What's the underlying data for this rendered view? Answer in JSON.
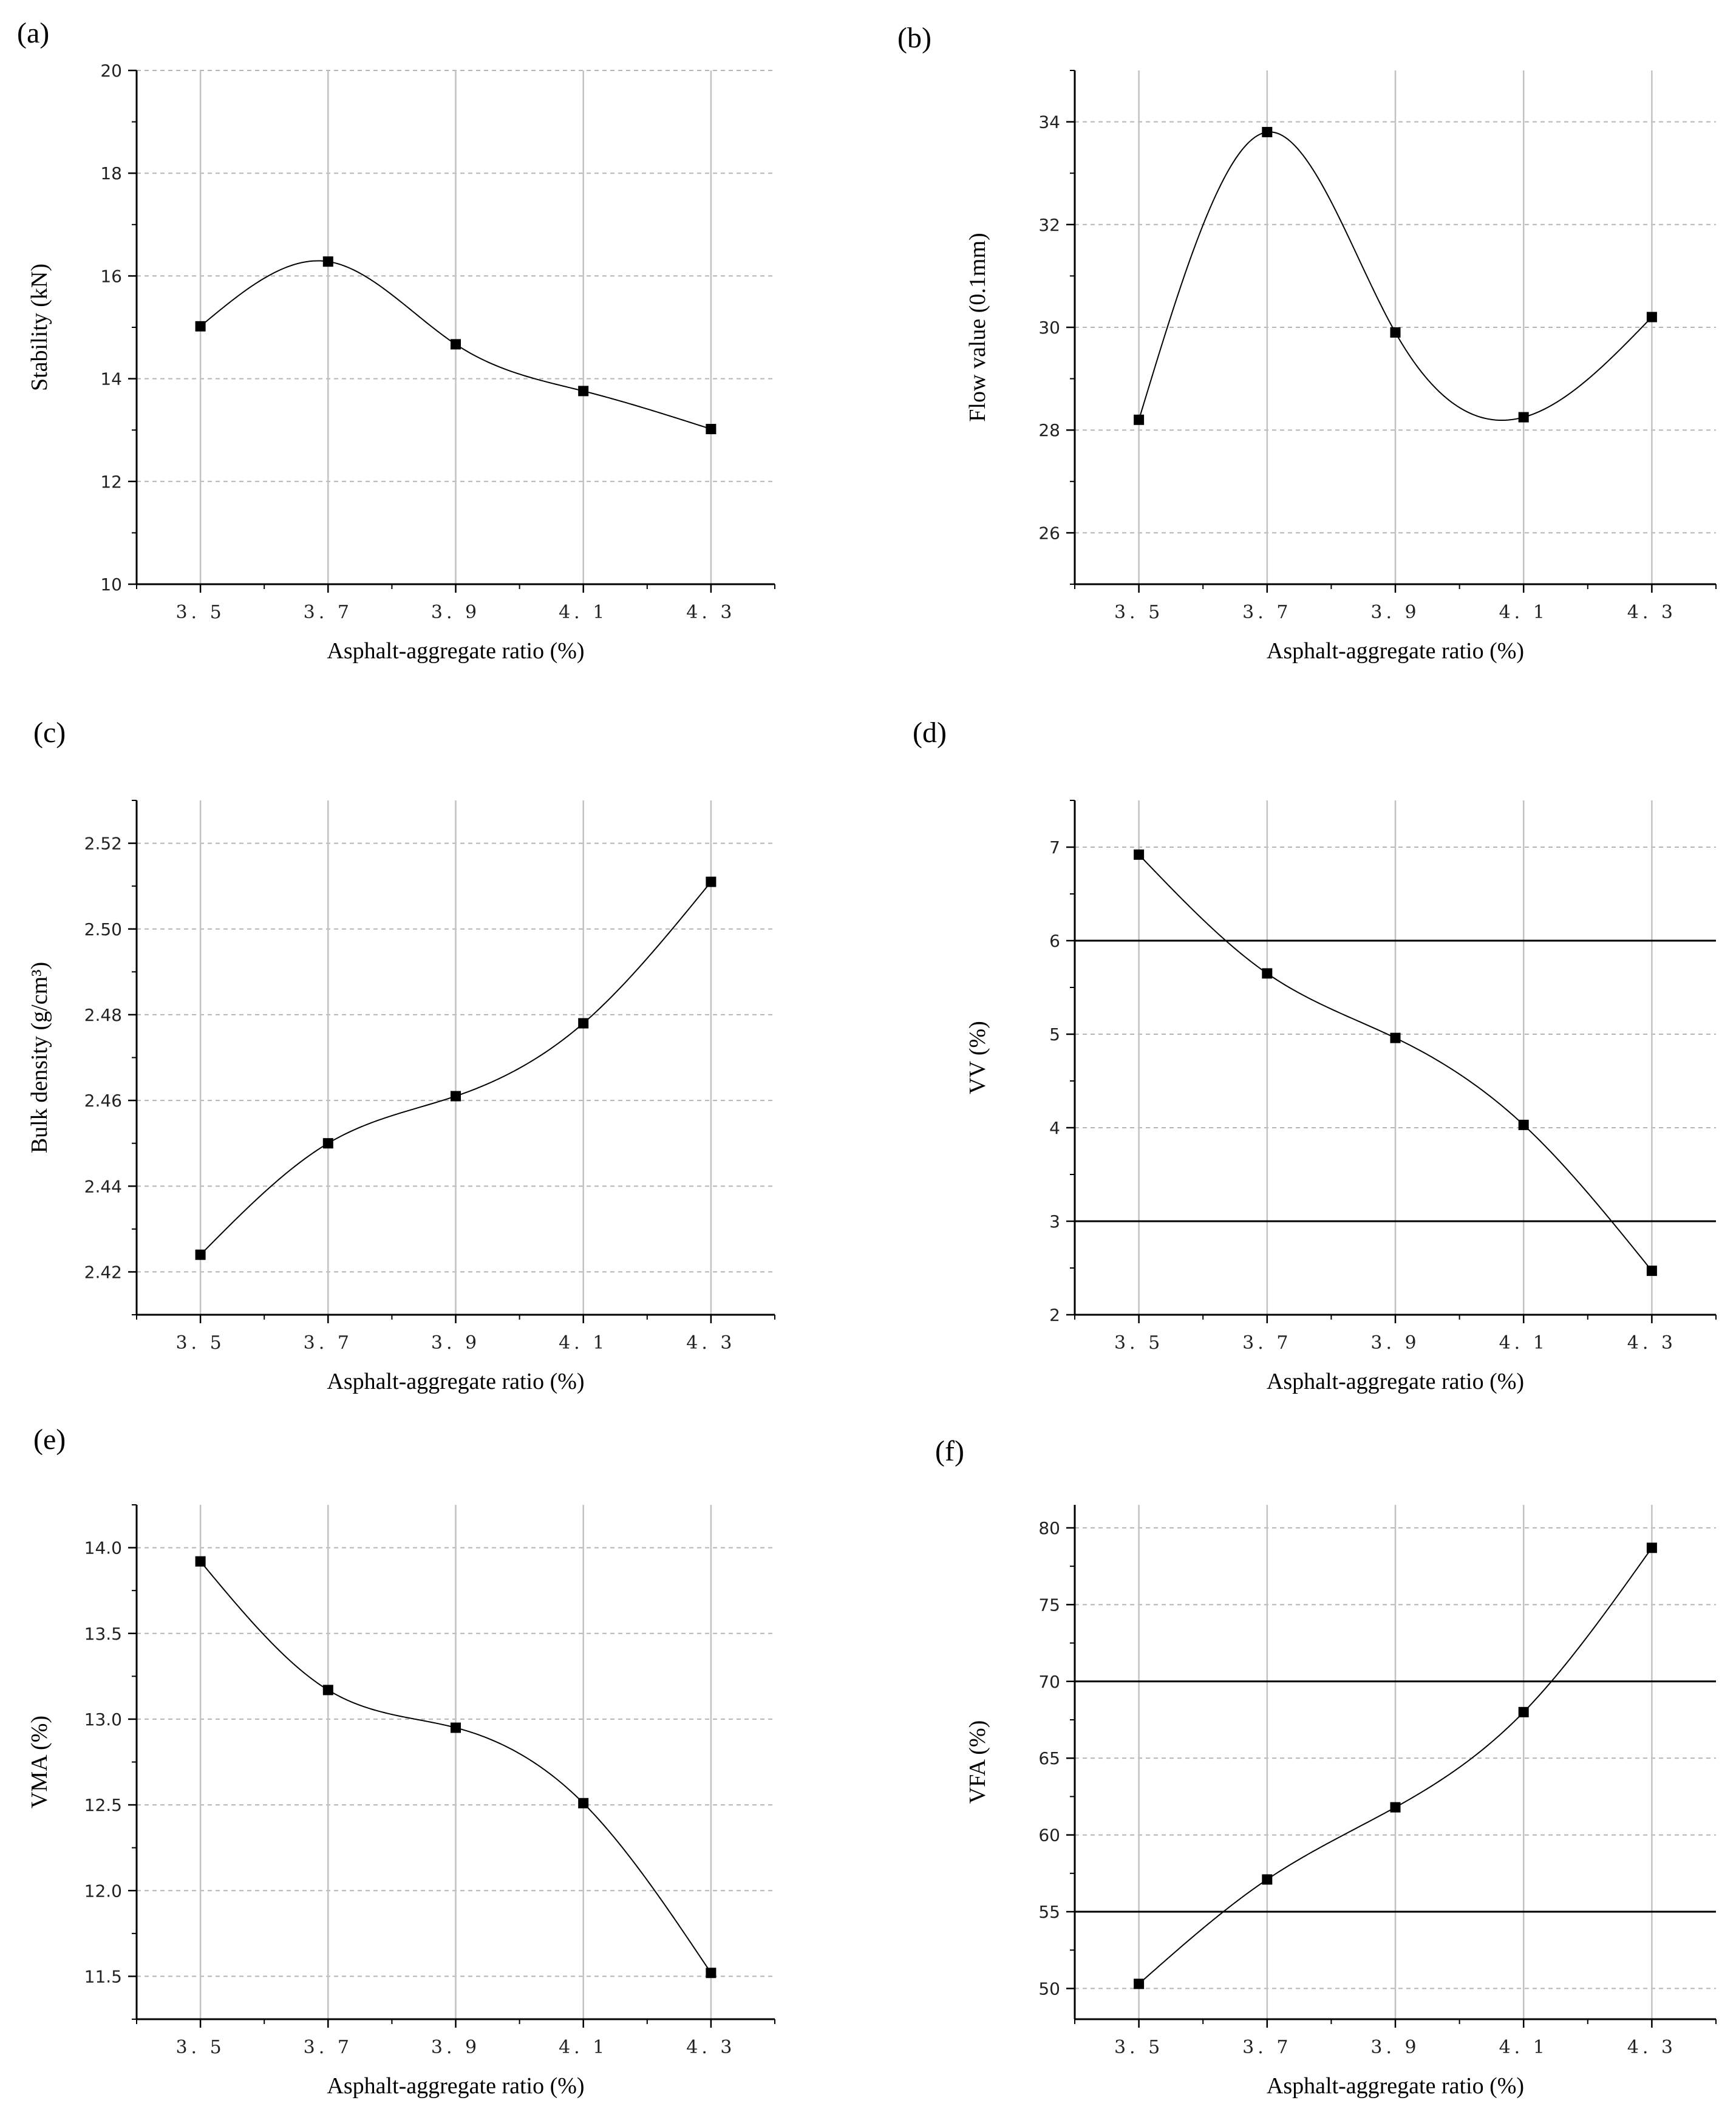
{
  "chart_data": [
    {
      "id": "a",
      "type": "line",
      "panel_label": "(a)",
      "xlabel": "Asphalt-aggregate ratio (%)",
      "ylabel": "Stability (kN)",
      "categories": [
        "3. 5",
        "3. 7",
        "3. 9",
        "4. 1",
        "4. 3"
      ],
      "x": [
        3.5,
        3.7,
        3.9,
        4.1,
        4.3
      ],
      "values": [
        15.02,
        16.28,
        14.67,
        13.76,
        13.02
      ],
      "ylim": [
        10,
        20
      ],
      "yticks": [
        10,
        12,
        14,
        16,
        18,
        20
      ],
      "ytick_labels": [
        "10",
        "12",
        "14",
        "16",
        "18",
        "20"
      ],
      "ref_lines": []
    },
    {
      "id": "b",
      "type": "line",
      "panel_label": "(b)",
      "xlabel": "Asphalt-aggregate ratio (%)",
      "ylabel": "Flow value (0.1mm)",
      "categories": [
        "3. 5",
        "3. 7",
        "3. 9",
        "4. 1",
        "4. 3"
      ],
      "x": [
        3.5,
        3.7,
        3.9,
        4.1,
        4.3
      ],
      "values": [
        28.2,
        33.8,
        29.9,
        28.25,
        30.2
      ],
      "ylim": [
        25,
        35
      ],
      "yticks": [
        26,
        28,
        30,
        32,
        34
      ],
      "ytick_labels": [
        "26",
        "28",
        "30",
        "32",
        "34"
      ],
      "ref_lines": []
    },
    {
      "id": "c",
      "type": "line",
      "panel_label": "(c)",
      "xlabel": "Asphalt-aggregate ratio (%)",
      "ylabel": "Bulk density (g/cm³)",
      "categories": [
        "3. 5",
        "3. 7",
        "3. 9",
        "4. 1",
        "4. 3"
      ],
      "x": [
        3.5,
        3.7,
        3.9,
        4.1,
        4.3
      ],
      "values": [
        2.424,
        2.45,
        2.461,
        2.478,
        2.511
      ],
      "ylim": [
        2.41,
        2.53
      ],
      "yticks": [
        2.42,
        2.44,
        2.46,
        2.48,
        2.5,
        2.52
      ],
      "ytick_labels": [
        "2.42",
        "2.44",
        "2.46",
        "2.48",
        "2.50",
        "2.52"
      ],
      "ref_lines": []
    },
    {
      "id": "d",
      "type": "line",
      "panel_label": "(d)",
      "xlabel": "Asphalt-aggregate ratio (%)",
      "ylabel": "VV (%)",
      "categories": [
        "3. 5",
        "3. 7",
        "3. 9",
        "4. 1",
        "4. 3"
      ],
      "x": [
        3.5,
        3.7,
        3.9,
        4.1,
        4.3
      ],
      "values": [
        6.92,
        5.65,
        4.96,
        4.03,
        2.47
      ],
      "ylim": [
        2,
        7.5
      ],
      "yticks": [
        2,
        3,
        4,
        5,
        6,
        7
      ],
      "ytick_labels": [
        "2",
        "3",
        "4",
        "5",
        "6",
        "7"
      ],
      "ref_lines": [
        3,
        6
      ]
    },
    {
      "id": "e",
      "type": "line",
      "panel_label": "(e)",
      "xlabel": "Asphalt-aggregate ratio (%)",
      "ylabel": "VMA (%)",
      "categories": [
        "3. 5",
        "3. 7",
        "3. 9",
        "4. 1",
        "4. 3"
      ],
      "x": [
        3.5,
        3.7,
        3.9,
        4.1,
        4.3
      ],
      "values": [
        13.92,
        13.17,
        12.95,
        12.51,
        11.52
      ],
      "ylim": [
        11.25,
        14.25
      ],
      "yticks": [
        11.5,
        12.0,
        12.5,
        13.0,
        13.5,
        14.0
      ],
      "ytick_labels": [
        "11.5",
        "12.0",
        "12.5",
        "13.0",
        "13.5",
        "14.0"
      ],
      "ref_lines": []
    },
    {
      "id": "f",
      "type": "line",
      "panel_label": "(f)",
      "xlabel": "Asphalt-aggregate ratio (%)",
      "ylabel": "VFA (%)",
      "categories": [
        "3. 5",
        "3. 7",
        "3. 9",
        "4. 1",
        "4. 3"
      ],
      "x": [
        3.5,
        3.7,
        3.9,
        4.1,
        4.3
      ],
      "values": [
        50.3,
        57.1,
        61.8,
        68.0,
        78.7
      ],
      "ylim": [
        48,
        81.5
      ],
      "yticks": [
        50,
        55,
        60,
        65,
        70,
        75,
        80
      ],
      "ytick_labels": [
        "50",
        "55",
        "60",
        "65",
        "70",
        "75",
        "80"
      ],
      "ref_lines": [
        55,
        70
      ]
    }
  ]
}
